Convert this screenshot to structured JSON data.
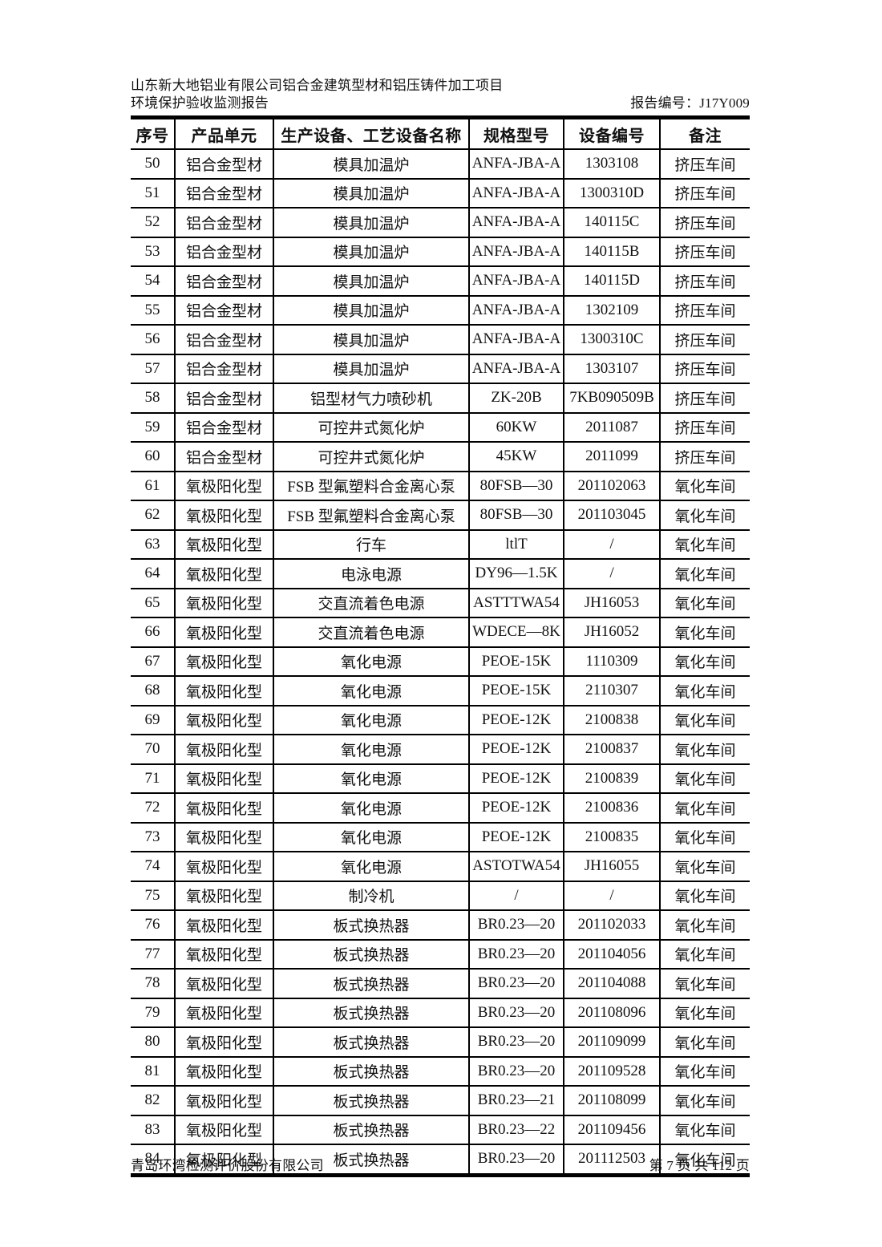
{
  "doc_header": {
    "project_title": "山东新大地铝业有限公司铝合金建筑型材和铝压铸件加工项目",
    "report_title": "环境保护验收监测报告",
    "report_number": "报告编号：J17Y009"
  },
  "table": {
    "columns": [
      "序号",
      "产品单元",
      "生产设备、工艺设备名称",
      "规格型号",
      "设备编号",
      "备注"
    ],
    "rows": [
      [
        "50",
        "铝合金型材",
        "模具加温炉",
        "ANFA-JBA-A",
        "1303108",
        "挤压车间"
      ],
      [
        "51",
        "铝合金型材",
        "模具加温炉",
        "ANFA-JBA-A",
        "1300310D",
        "挤压车间"
      ],
      [
        "52",
        "铝合金型材",
        "模具加温炉",
        "ANFA-JBA-A",
        "140115C",
        "挤压车间"
      ],
      [
        "53",
        "铝合金型材",
        "模具加温炉",
        "ANFA-JBA-A",
        "140115B",
        "挤压车间"
      ],
      [
        "54",
        "铝合金型材",
        "模具加温炉",
        "ANFA-JBA-A",
        "140115D",
        "挤压车间"
      ],
      [
        "55",
        "铝合金型材",
        "模具加温炉",
        "ANFA-JBA-A",
        "1302109",
        "挤压车间"
      ],
      [
        "56",
        "铝合金型材",
        "模具加温炉",
        "ANFA-JBA-A",
        "1300310C",
        "挤压车间"
      ],
      [
        "57",
        "铝合金型材",
        "模具加温炉",
        "ANFA-JBA-A",
        "1303107",
        "挤压车间"
      ],
      [
        "58",
        "铝合金型材",
        "铝型材气力喷砂机",
        "ZK-20B",
        "7KB090509B",
        "挤压车间"
      ],
      [
        "59",
        "铝合金型材",
        "可控井式氮化炉",
        "60KW",
        "2011087",
        "挤压车间"
      ],
      [
        "60",
        "铝合金型材",
        "可控井式氮化炉",
        "45KW",
        "2011099",
        "挤压车间"
      ],
      [
        "61",
        "氧极阳化型",
        "FSB 型氟塑料合金离心泵",
        "80FSB—30",
        "201102063",
        "氧化车间"
      ],
      [
        "62",
        "氧极阳化型",
        "FSB 型氟塑料合金离心泵",
        "80FSB—30",
        "201103045",
        "氧化车间"
      ],
      [
        "63",
        "氧极阳化型",
        "行车",
        "ltlT",
        "/",
        "氧化车间"
      ],
      [
        "64",
        "氧极阳化型",
        "电泳电源",
        "DY96—1.5K",
        "/",
        "氧化车间"
      ],
      [
        "65",
        "氧极阳化型",
        "交直流着色电源",
        "ASTTTWA54",
        "JH16053",
        "氧化车间"
      ],
      [
        "66",
        "氧极阳化型",
        "交直流着色电源",
        "WDECE—8K",
        "JH16052",
        "氧化车间"
      ],
      [
        "67",
        "氧极阳化型",
        "氧化电源",
        "PEOE-15K",
        "1110309",
        "氧化车间"
      ],
      [
        "68",
        "氧极阳化型",
        "氧化电源",
        "PEOE-15K",
        "2110307",
        "氧化车间"
      ],
      [
        "69",
        "氧极阳化型",
        "氧化电源",
        "PEOE-12K",
        "2100838",
        "氧化车间"
      ],
      [
        "70",
        "氧极阳化型",
        "氧化电源",
        "PEOE-12K",
        "2100837",
        "氧化车间"
      ],
      [
        "71",
        "氧极阳化型",
        "氧化电源",
        "PEOE-12K",
        "2100839",
        "氧化车间"
      ],
      [
        "72",
        "氧极阳化型",
        "氧化电源",
        "PEOE-12K",
        "2100836",
        "氧化车间"
      ],
      [
        "73",
        "氧极阳化型",
        "氧化电源",
        "PEOE-12K",
        "2100835",
        "氧化车间"
      ],
      [
        "74",
        "氧极阳化型",
        "氧化电源",
        "ASTOTWA54",
        "JH16055",
        "氧化车间"
      ],
      [
        "75",
        "氧极阳化型",
        "制冷机",
        "/",
        "/",
        "氧化车间"
      ],
      [
        "76",
        "氧极阳化型",
        "板式换热器",
        "BR0.23—20",
        "201102033",
        "氧化车间"
      ],
      [
        "77",
        "氧极阳化型",
        "板式换热器",
        "BR0.23—20",
        "201104056",
        "氧化车间"
      ],
      [
        "78",
        "氧极阳化型",
        "板式换热器",
        "BR0.23—20",
        "201104088",
        "氧化车间"
      ],
      [
        "79",
        "氧极阳化型",
        "板式换热器",
        "BR0.23—20",
        "201108096",
        "氧化车间"
      ],
      [
        "80",
        "氧极阳化型",
        "板式换热器",
        "BR0.23—20",
        "201109099",
        "氧化车间"
      ],
      [
        "81",
        "氧极阳化型",
        "板式换热器",
        "BR0.23—20",
        "201109528",
        "氧化车间"
      ],
      [
        "82",
        "氧极阳化型",
        "板式换热器",
        "BR0.23—21",
        "201108099",
        "氧化车间"
      ],
      [
        "83",
        "氧极阳化型",
        "板式换热器",
        "BR0.23—22",
        "201109456",
        "氧化车间"
      ],
      [
        "84",
        "氧极阳化型",
        "板式换热器",
        "BR0.23—20",
        "201112503",
        "氧化车间"
      ]
    ]
  },
  "doc_footer": {
    "company": "青岛环湾检测评价股份有限公司",
    "page_info": "第 7 页 共 112 页"
  },
  "colors": {
    "text": "#111111",
    "border": "#000000",
    "background": "#ffffff"
  }
}
